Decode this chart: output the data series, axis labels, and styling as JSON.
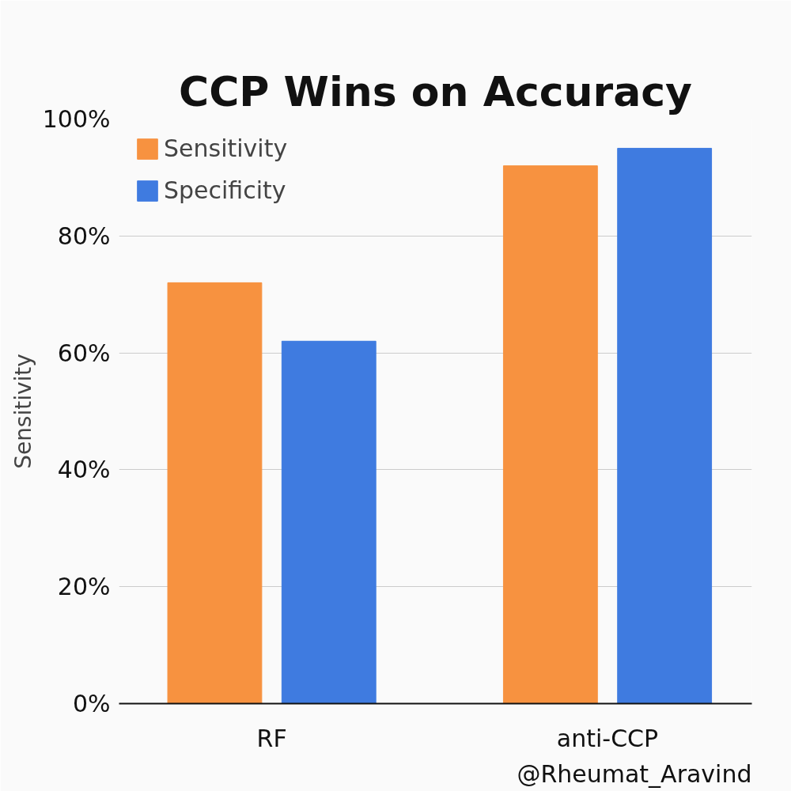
{
  "chart_data": {
    "type": "bar",
    "title": "CCP Wins on Accuracy",
    "ylabel": "Sensitivity",
    "categories": [
      "RF",
      "anti-CCP"
    ],
    "series": [
      {
        "name": "Sensitivity",
        "color": "#f79240",
        "values": [
          72,
          92
        ]
      },
      {
        "name": "Specificity",
        "color": "#3f7be0",
        "values": [
          62,
          95
        ]
      }
    ],
    "ylim": [
      0,
      100
    ],
    "yticks": [
      {
        "value": 0,
        "label": "0%"
      },
      {
        "value": 20,
        "label": "20%"
      },
      {
        "value": 40,
        "label": "40%"
      },
      {
        "value": 60,
        "label": "60%"
      },
      {
        "value": 80,
        "label": "80%"
      },
      {
        "value": 100,
        "label": "100%"
      }
    ],
    "grid": "y",
    "legend": "top left",
    "annotations": [
      "@Rheumat_Aravind"
    ]
  }
}
